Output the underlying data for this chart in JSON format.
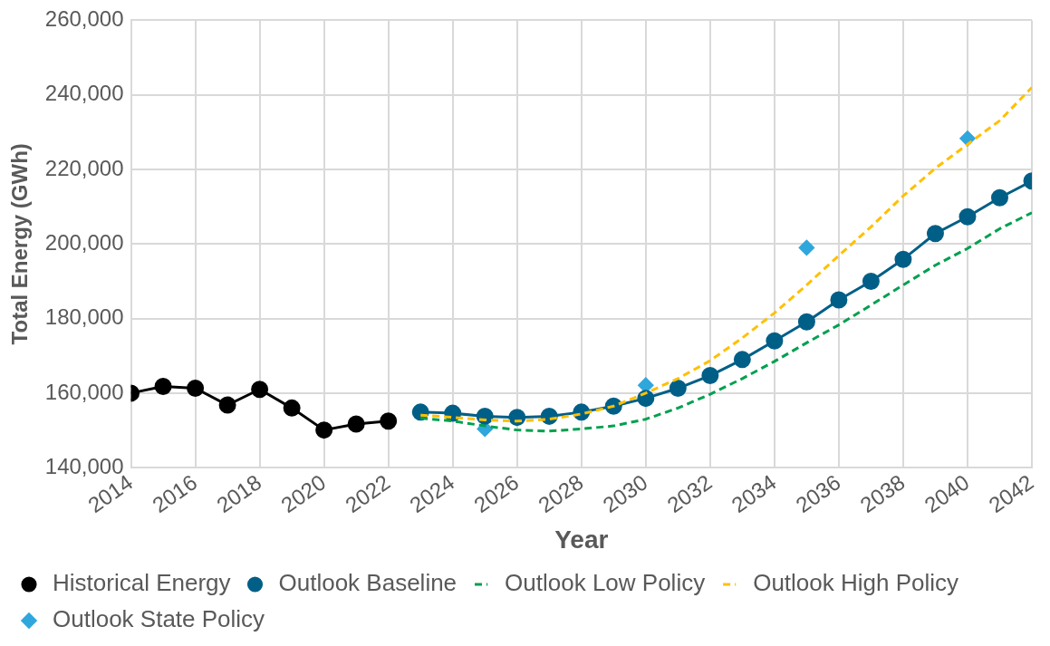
{
  "chart_data": {
    "type": "line",
    "xlabel": "Year",
    "ylabel": "Total Energy (GWh)",
    "xlim": [
      2014,
      2042
    ],
    "xticks": [
      2014,
      2016,
      2018,
      2020,
      2022,
      2024,
      2026,
      2028,
      2030,
      2032,
      2034,
      2036,
      2038,
      2040,
      2042
    ],
    "ylim": [
      140000,
      260000
    ],
    "yticks": [
      {
        "value": 140000,
        "label": "140,000"
      },
      {
        "value": 160000,
        "label": "160,000"
      },
      {
        "value": 180000,
        "label": "180,000"
      },
      {
        "value": 200000,
        "label": "200,000"
      },
      {
        "value": 220000,
        "label": "220,000"
      },
      {
        "value": 240000,
        "label": "240,000"
      },
      {
        "value": 260000,
        "label": "260,000"
      }
    ],
    "grid": true,
    "legend": "bottom",
    "series": [
      {
        "name": "Historical Energy",
        "color": "#000000",
        "marker": "circle",
        "line_style": "solid",
        "x": [
          2014,
          2015,
          2016,
          2017,
          2018,
          2019,
          2020,
          2021,
          2022
        ],
        "values": [
          160000,
          161800,
          161300,
          156800,
          161000,
          156000,
          150100,
          151700,
          152500
        ]
      },
      {
        "name": "Outlook Baseline",
        "color": "#005f87",
        "marker": "circle",
        "line_style": "solid",
        "x": [
          2023,
          2024,
          2025,
          2026,
          2027,
          2028,
          2029,
          2030,
          2031,
          2032,
          2033,
          2034,
          2035,
          2036,
          2037,
          2038,
          2039,
          2040,
          2041,
          2042
        ],
        "values": [
          154900,
          154600,
          153800,
          153500,
          153800,
          154900,
          156500,
          158600,
          161300,
          164700,
          169000,
          174000,
          179100,
          185000,
          190000,
          195900,
          202800,
          207300,
          212400,
          216900
        ]
      },
      {
        "name": "Outlook Low Policy",
        "color": "#00a04f",
        "marker": "none",
        "line_style": "dashed",
        "x": [
          2023,
          2024,
          2025,
          2026,
          2027,
          2028,
          2029,
          2030,
          2031,
          2032,
          2033,
          2034,
          2035,
          2036,
          2037,
          2038,
          2039,
          2040,
          2041,
          2042
        ],
        "values": [
          153300,
          152500,
          151200,
          150100,
          149800,
          150400,
          151200,
          153000,
          156000,
          159700,
          163900,
          168500,
          173500,
          178300,
          183600,
          189000,
          194300,
          198800,
          204100,
          208400
        ]
      },
      {
        "name": "Outlook High Policy",
        "color": "#ffc000",
        "marker": "none",
        "line_style": "dashed",
        "x": [
          2023,
          2024,
          2025,
          2026,
          2027,
          2028,
          2029,
          2030,
          2031,
          2032,
          2033,
          2034,
          2035,
          2036,
          2037,
          2038,
          2039,
          2040,
          2041,
          2042
        ],
        "values": [
          154100,
          153500,
          152800,
          152500,
          153000,
          154400,
          156500,
          160000,
          163900,
          168700,
          174800,
          181500,
          189000,
          196900,
          204600,
          212900,
          220300,
          226700,
          233100,
          242000
        ]
      },
      {
        "name": "Outlook State Policy",
        "color": "#2fa7dc",
        "type": "scatter",
        "marker": "diamond",
        "x": [
          2025,
          2030,
          2035,
          2040
        ],
        "values": [
          150400,
          162100,
          199000,
          228300
        ]
      }
    ]
  }
}
